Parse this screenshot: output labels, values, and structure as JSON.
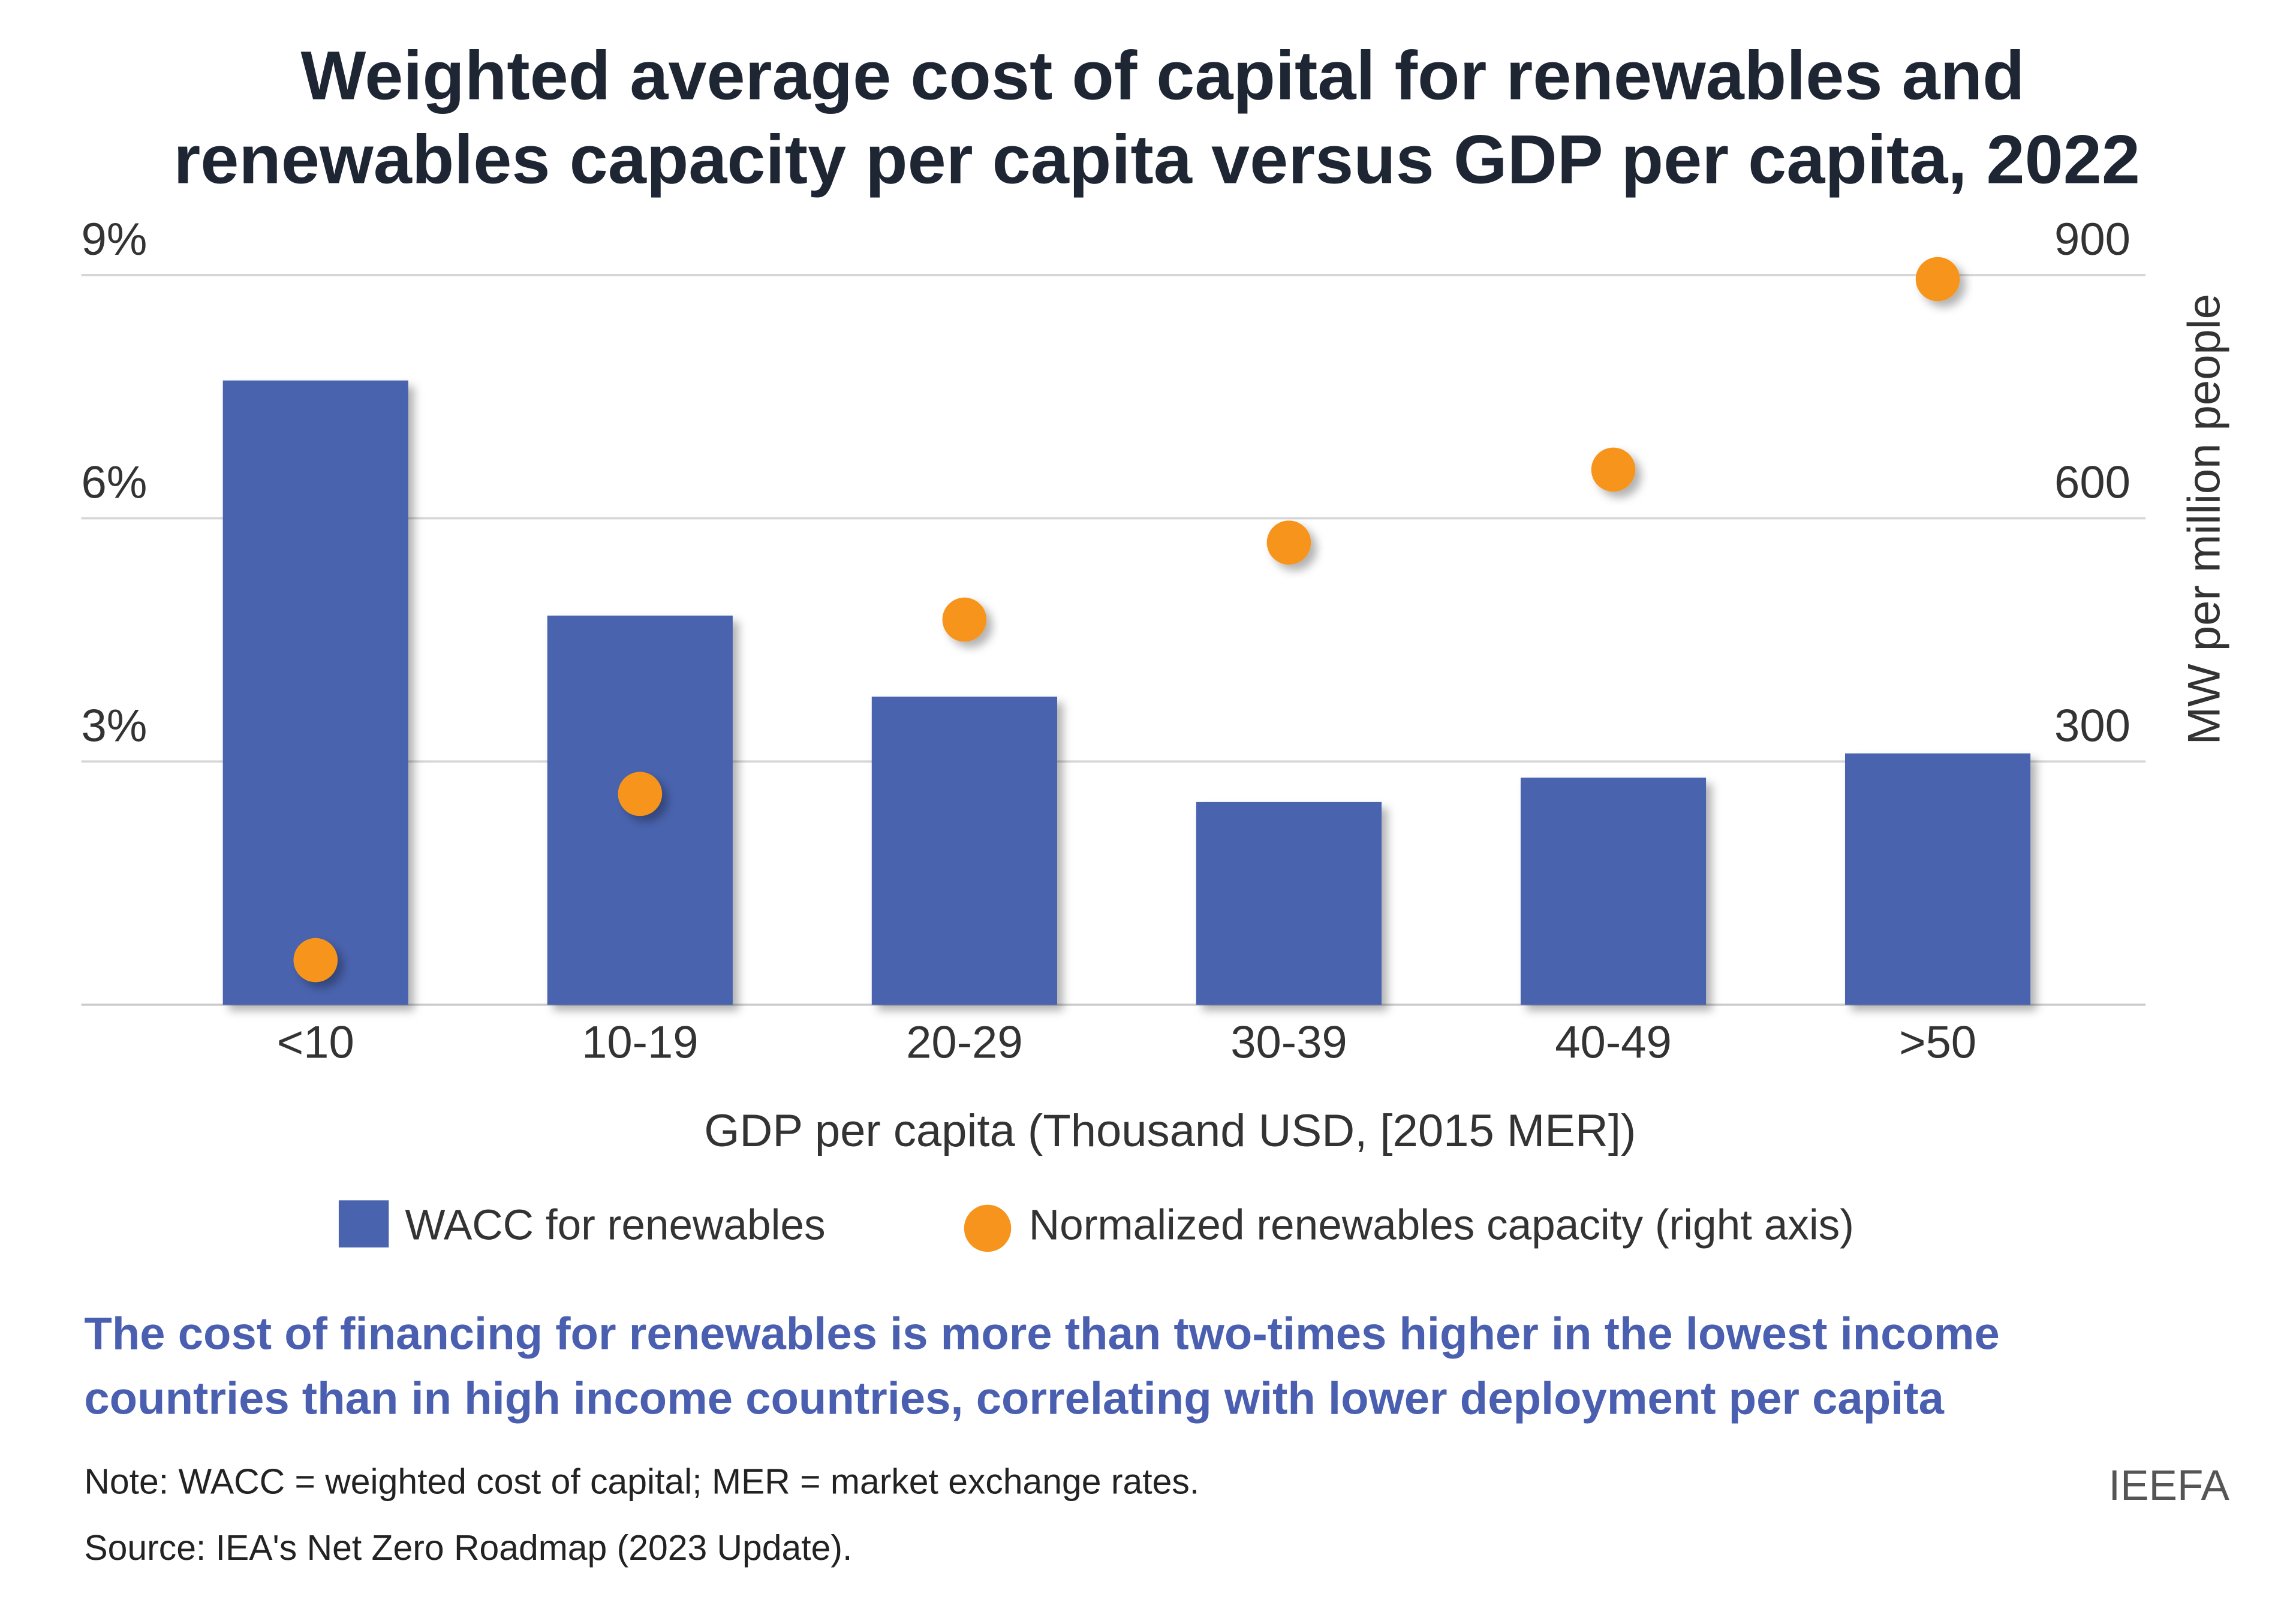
{
  "chart_data": {
    "type": "combo",
    "title": [
      "Weighted average cost of capital for renewables and",
      "renewables capacity per capita versus GDP per capita, 2022"
    ],
    "x_label": "GDP per capita (Thousand USD, [2015 MER])",
    "y2_label": "MW per million people",
    "categories": [
      "<10",
      "10-19",
      "20-29",
      "30-39",
      "40-49",
      ">50"
    ],
    "series": [
      {
        "name": "WACC for renewables",
        "type": "bar",
        "color": "#4a63ae",
        "values": [
          7.7,
          4.8,
          3.8,
          2.5,
          2.8,
          3.1
        ]
      },
      {
        "name": "Normalized renewables capacity (right axis)",
        "type": "scatter",
        "axis": "y2",
        "color": "#f7941d",
        "values": [
          55,
          260,
          475,
          570,
          660,
          895
        ]
      }
    ],
    "ylim": [
      0,
      9
    ],
    "yticks": [
      {
        "value": 3,
        "label": "3%"
      },
      {
        "value": 6,
        "label": "6%"
      },
      {
        "value": 9,
        "label": "9%"
      }
    ],
    "y2lim": [
      0,
      900
    ],
    "y2ticks": [
      300,
      600,
      900
    ],
    "grid": true,
    "legend": "bottom"
  },
  "takeaway": [
    "The cost of financing for renewables is more than two-times higher in the lowest income",
    "countries than in high income countries, correlating with lower deployment per capita"
  ],
  "note": "Note: WACC = weighted cost of capital; MER = market exchange rates.",
  "source": "Source: IEA's Net Zero Roadmap (2023 Update).",
  "brand": "IEEFA"
}
